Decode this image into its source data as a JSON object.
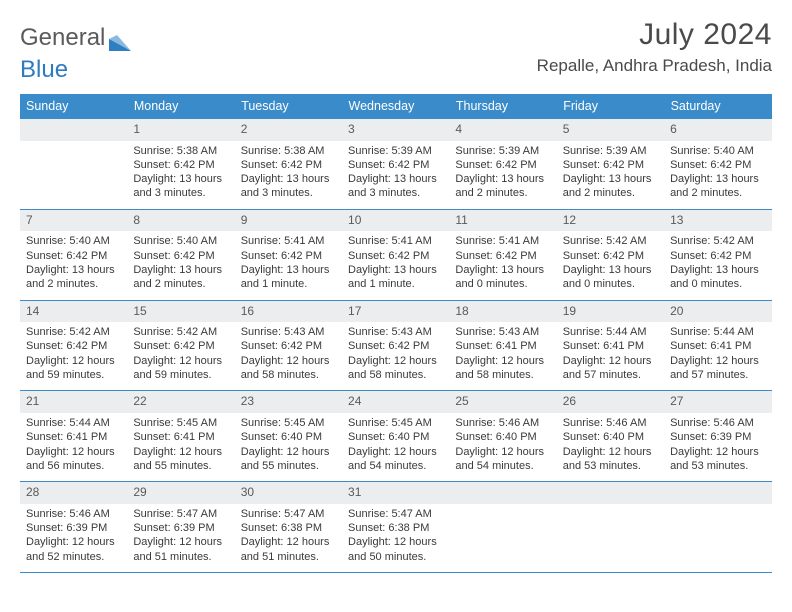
{
  "brand": {
    "word1": "General",
    "word2": "Blue",
    "word1_color": "#5a5a5a",
    "word2_color": "#2f7bbf"
  },
  "title": "July 2024",
  "location": "Repalle, Andhra Pradesh, India",
  "colors": {
    "header_bg": "#3a8bc9",
    "header_text": "#ffffff",
    "daynum_bg": "#ebedef",
    "text": "#3a3a3a",
    "title_color": "#4a4a4a"
  },
  "weekdays": [
    "Sunday",
    "Monday",
    "Tuesday",
    "Wednesday",
    "Thursday",
    "Friday",
    "Saturday"
  ],
  "weeks": [
    [
      null,
      {
        "n": "1",
        "sr": "Sunrise: 5:38 AM",
        "ss": "Sunset: 6:42 PM",
        "d1": "Daylight: 13 hours",
        "d2": "and 3 minutes."
      },
      {
        "n": "2",
        "sr": "Sunrise: 5:38 AM",
        "ss": "Sunset: 6:42 PM",
        "d1": "Daylight: 13 hours",
        "d2": "and 3 minutes."
      },
      {
        "n": "3",
        "sr": "Sunrise: 5:39 AM",
        "ss": "Sunset: 6:42 PM",
        "d1": "Daylight: 13 hours",
        "d2": "and 3 minutes."
      },
      {
        "n": "4",
        "sr": "Sunrise: 5:39 AM",
        "ss": "Sunset: 6:42 PM",
        "d1": "Daylight: 13 hours",
        "d2": "and 2 minutes."
      },
      {
        "n": "5",
        "sr": "Sunrise: 5:39 AM",
        "ss": "Sunset: 6:42 PM",
        "d1": "Daylight: 13 hours",
        "d2": "and 2 minutes."
      },
      {
        "n": "6",
        "sr": "Sunrise: 5:40 AM",
        "ss": "Sunset: 6:42 PM",
        "d1": "Daylight: 13 hours",
        "d2": "and 2 minutes."
      }
    ],
    [
      {
        "n": "7",
        "sr": "Sunrise: 5:40 AM",
        "ss": "Sunset: 6:42 PM",
        "d1": "Daylight: 13 hours",
        "d2": "and 2 minutes."
      },
      {
        "n": "8",
        "sr": "Sunrise: 5:40 AM",
        "ss": "Sunset: 6:42 PM",
        "d1": "Daylight: 13 hours",
        "d2": "and 2 minutes."
      },
      {
        "n": "9",
        "sr": "Sunrise: 5:41 AM",
        "ss": "Sunset: 6:42 PM",
        "d1": "Daylight: 13 hours",
        "d2": "and 1 minute."
      },
      {
        "n": "10",
        "sr": "Sunrise: 5:41 AM",
        "ss": "Sunset: 6:42 PM",
        "d1": "Daylight: 13 hours",
        "d2": "and 1 minute."
      },
      {
        "n": "11",
        "sr": "Sunrise: 5:41 AM",
        "ss": "Sunset: 6:42 PM",
        "d1": "Daylight: 13 hours",
        "d2": "and 0 minutes."
      },
      {
        "n": "12",
        "sr": "Sunrise: 5:42 AM",
        "ss": "Sunset: 6:42 PM",
        "d1": "Daylight: 13 hours",
        "d2": "and 0 minutes."
      },
      {
        "n": "13",
        "sr": "Sunrise: 5:42 AM",
        "ss": "Sunset: 6:42 PM",
        "d1": "Daylight: 13 hours",
        "d2": "and 0 minutes."
      }
    ],
    [
      {
        "n": "14",
        "sr": "Sunrise: 5:42 AM",
        "ss": "Sunset: 6:42 PM",
        "d1": "Daylight: 12 hours",
        "d2": "and 59 minutes."
      },
      {
        "n": "15",
        "sr": "Sunrise: 5:42 AM",
        "ss": "Sunset: 6:42 PM",
        "d1": "Daylight: 12 hours",
        "d2": "and 59 minutes."
      },
      {
        "n": "16",
        "sr": "Sunrise: 5:43 AM",
        "ss": "Sunset: 6:42 PM",
        "d1": "Daylight: 12 hours",
        "d2": "and 58 minutes."
      },
      {
        "n": "17",
        "sr": "Sunrise: 5:43 AM",
        "ss": "Sunset: 6:42 PM",
        "d1": "Daylight: 12 hours",
        "d2": "and 58 minutes."
      },
      {
        "n": "18",
        "sr": "Sunrise: 5:43 AM",
        "ss": "Sunset: 6:41 PM",
        "d1": "Daylight: 12 hours",
        "d2": "and 58 minutes."
      },
      {
        "n": "19",
        "sr": "Sunrise: 5:44 AM",
        "ss": "Sunset: 6:41 PM",
        "d1": "Daylight: 12 hours",
        "d2": "and 57 minutes."
      },
      {
        "n": "20",
        "sr": "Sunrise: 5:44 AM",
        "ss": "Sunset: 6:41 PM",
        "d1": "Daylight: 12 hours",
        "d2": "and 57 minutes."
      }
    ],
    [
      {
        "n": "21",
        "sr": "Sunrise: 5:44 AM",
        "ss": "Sunset: 6:41 PM",
        "d1": "Daylight: 12 hours",
        "d2": "and 56 minutes."
      },
      {
        "n": "22",
        "sr": "Sunrise: 5:45 AM",
        "ss": "Sunset: 6:41 PM",
        "d1": "Daylight: 12 hours",
        "d2": "and 55 minutes."
      },
      {
        "n": "23",
        "sr": "Sunrise: 5:45 AM",
        "ss": "Sunset: 6:40 PM",
        "d1": "Daylight: 12 hours",
        "d2": "and 55 minutes."
      },
      {
        "n": "24",
        "sr": "Sunrise: 5:45 AM",
        "ss": "Sunset: 6:40 PM",
        "d1": "Daylight: 12 hours",
        "d2": "and 54 minutes."
      },
      {
        "n": "25",
        "sr": "Sunrise: 5:46 AM",
        "ss": "Sunset: 6:40 PM",
        "d1": "Daylight: 12 hours",
        "d2": "and 54 minutes."
      },
      {
        "n": "26",
        "sr": "Sunrise: 5:46 AM",
        "ss": "Sunset: 6:40 PM",
        "d1": "Daylight: 12 hours",
        "d2": "and 53 minutes."
      },
      {
        "n": "27",
        "sr": "Sunrise: 5:46 AM",
        "ss": "Sunset: 6:39 PM",
        "d1": "Daylight: 12 hours",
        "d2": "and 53 minutes."
      }
    ],
    [
      {
        "n": "28",
        "sr": "Sunrise: 5:46 AM",
        "ss": "Sunset: 6:39 PM",
        "d1": "Daylight: 12 hours",
        "d2": "and 52 minutes."
      },
      {
        "n": "29",
        "sr": "Sunrise: 5:47 AM",
        "ss": "Sunset: 6:39 PM",
        "d1": "Daylight: 12 hours",
        "d2": "and 51 minutes."
      },
      {
        "n": "30",
        "sr": "Sunrise: 5:47 AM",
        "ss": "Sunset: 6:38 PM",
        "d1": "Daylight: 12 hours",
        "d2": "and 51 minutes."
      },
      {
        "n": "31",
        "sr": "Sunrise: 5:47 AM",
        "ss": "Sunset: 6:38 PM",
        "d1": "Daylight: 12 hours",
        "d2": "and 50 minutes."
      },
      null,
      null,
      null
    ]
  ]
}
